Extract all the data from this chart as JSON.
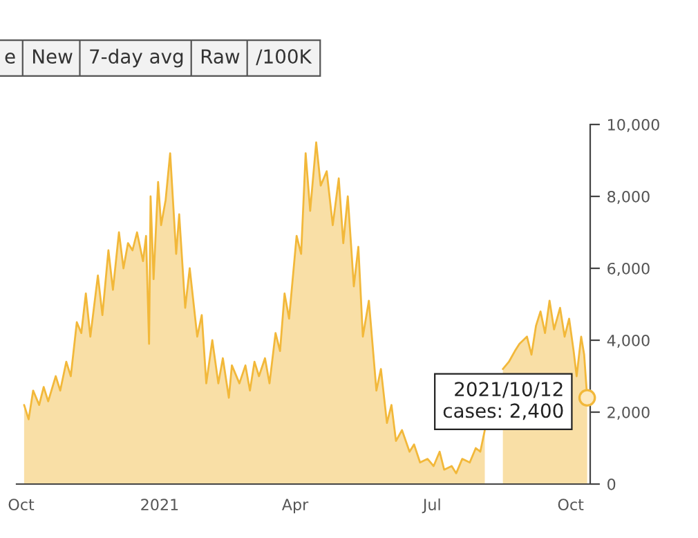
{
  "chart_data": {
    "type": "area",
    "x": [
      "2020-10-03",
      "2020-10-06",
      "2020-10-09",
      "2020-10-13",
      "2020-10-16",
      "2020-10-19",
      "2020-10-24",
      "2020-10-27",
      "2020-10-31",
      "2020-11-03",
      "2020-11-07",
      "2020-11-10",
      "2020-11-13",
      "2020-11-16",
      "2020-11-21",
      "2020-11-24",
      "2020-11-28",
      "2020-12-01",
      "2020-12-05",
      "2020-12-08",
      "2020-12-11",
      "2020-12-14",
      "2020-12-17",
      "2020-12-21",
      "2020-12-23",
      "2020-12-25",
      "2020-12-26",
      "2020-12-28",
      "2020-12-31",
      "2021-01-02",
      "2021-01-05",
      "2021-01-08",
      "2021-01-12",
      "2021-01-14",
      "2021-01-18",
      "2021-01-21",
      "2021-01-26",
      "2021-01-29",
      "2021-02-01",
      "2021-02-05",
      "2021-02-09",
      "2021-02-12",
      "2021-02-16",
      "2021-02-18",
      "2021-02-23",
      "2021-02-27",
      "2021-03-02",
      "2021-03-05",
      "2021-03-08",
      "2021-03-12",
      "2021-03-15",
      "2021-03-19",
      "2021-03-22",
      "2021-03-25",
      "2021-03-28",
      "2021-04-02",
      "2021-04-05",
      "2021-04-08",
      "2021-04-11",
      "2021-04-15",
      "2021-04-18",
      "2021-04-22",
      "2021-04-26",
      "2021-04-30",
      "2021-05-03",
      "2021-05-06",
      "2021-05-10",
      "2021-05-13",
      "2021-05-16",
      "2021-05-20",
      "2021-05-25",
      "2021-05-28",
      "2021-06-01",
      "2021-06-04",
      "2021-06-07",
      "2021-06-11",
      "2021-06-16",
      "2021-06-19",
      "2021-06-23",
      "2021-06-28",
      "2021-07-02",
      "2021-07-06",
      "2021-07-09",
      "2021-07-14",
      "2021-07-17",
      "2021-07-21",
      "2021-07-26",
      "2021-07-30",
      "2021-08-02",
      "2021-08-05",
      "2021-08-08",
      "2021-08-12",
      "2021-08-17",
      "2021-08-21",
      "2021-08-25",
      "2021-08-28",
      "2021-09-02",
      "2021-09-05",
      "2021-09-08",
      "2021-09-11",
      "2021-09-14",
      "2021-09-17",
      "2021-09-20",
      "2021-09-24",
      "2021-09-27",
      "2021-09-30",
      "2021-10-03",
      "2021-10-05",
      "2021-10-08",
      "2021-10-10",
      "2021-10-12"
    ],
    "series": [
      {
        "color": "#f2b83a",
        "values": [
          2200,
          1800,
          2600,
          2200,
          2700,
          2300,
          3000,
          2600,
          3400,
          3000,
          4500,
          4200,
          5300,
          4100,
          5800,
          4700,
          6500,
          5400,
          7000,
          6000,
          6700,
          6500,
          7000,
          6200,
          6900,
          3900,
          8000,
          5700,
          8400,
          7200,
          7900,
          9200,
          6400,
          7500,
          4900,
          6000,
          4100,
          4700,
          2800,
          4000,
          2800,
          3500,
          2400,
          3300,
          2800,
          3300,
          2600,
          3400,
          3000,
          3500,
          2800,
          4200,
          3700,
          5300,
          4600,
          6900,
          6400,
          9200,
          7600,
          9500,
          8300,
          8700,
          7200,
          8500,
          6700,
          8000,
          5500,
          6600,
          4100,
          5100,
          2600,
          3200,
          1700,
          2200,
          1200,
          1500,
          900,
          1100,
          600,
          700,
          500,
          900,
          400,
          500,
          300,
          700,
          600,
          1000,
          900,
          1500,
          null,
          null,
          3200,
          3400,
          3700,
          3900,
          4100,
          3600,
          4400,
          4800,
          4200,
          5100,
          4300,
          4900,
          4100,
          4600,
          3700,
          3000,
          4100,
          3600,
          2400
        ]
      }
    ],
    "xlim": [
      "2020-09-28",
      "2021-10-14"
    ],
    "xticks": [
      {
        "value": "2020-10-01",
        "label": "Oct"
      },
      {
        "value": "2021-01-01",
        "label": "2021"
      },
      {
        "value": "2021-04-01",
        "label": "Apr"
      },
      {
        "value": "2021-07-01",
        "label": "Jul"
      },
      {
        "value": "2021-10-01",
        "label": "Oct"
      }
    ],
    "ylim": [
      0,
      10000
    ],
    "yticks": [
      {
        "value": 0,
        "label": "0"
      },
      {
        "value": 2000,
        "label": "2,000"
      },
      {
        "value": 4000,
        "label": "4,000"
      },
      {
        "value": 6000,
        "label": "6,000"
      },
      {
        "value": 8000,
        "label": "8,000"
      },
      {
        "value": 10000,
        "label": "10,000"
      }
    ],
    "grid": false,
    "legend": false,
    "annotations": [
      "e",
      "New",
      "7-day avg",
      "Raw",
      "/100K",
      {
        "text": "2021/10/12\ncases: 2,400",
        "x": "2021-10-12",
        "y": 2400
      }
    ]
  }
}
